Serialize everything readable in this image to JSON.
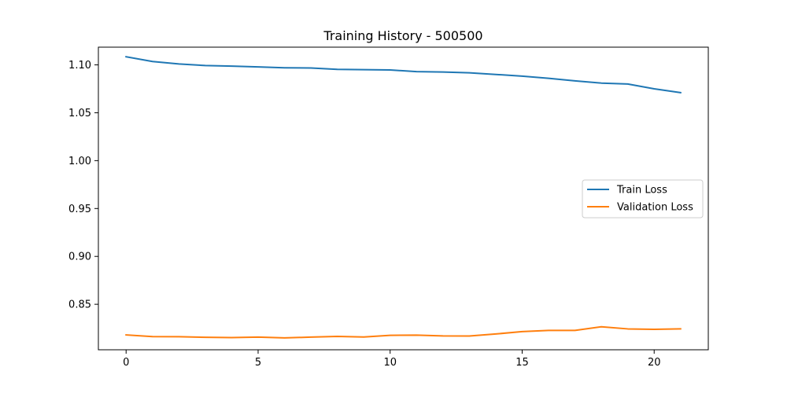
{
  "chart_data": {
    "type": "line",
    "title": "Training History - 500500",
    "xlabel": "",
    "ylabel": "",
    "xlim": [
      -1.05,
      22.05
    ],
    "ylim": [
      0.8025,
      1.1185
    ],
    "xticks": [
      0,
      5,
      10,
      15,
      20
    ],
    "yticks": [
      0.85,
      0.9,
      0.95,
      1.0,
      1.05,
      1.1
    ],
    "ytick_labels": [
      "0.85",
      "0.90",
      "0.95",
      "1.00",
      "1.05",
      "1.10"
    ],
    "grid": false,
    "legend_position": "center-right",
    "x": [
      0,
      1,
      2,
      3,
      4,
      5,
      6,
      7,
      8,
      9,
      10,
      11,
      12,
      13,
      14,
      15,
      16,
      17,
      18,
      19,
      20,
      21
    ],
    "series": [
      {
        "name": "Train Loss",
        "color": "#1f77b4",
        "values": [
          1.1085,
          1.1035,
          1.101,
          1.0993,
          1.0987,
          1.0979,
          1.097,
          1.0967,
          1.0953,
          1.095,
          1.0947,
          1.093,
          1.0925,
          1.0917,
          1.09,
          1.0882,
          1.086,
          1.0833,
          1.081,
          1.08,
          1.075,
          1.071
        ]
      },
      {
        "name": "Validation Loss",
        "color": "#ff7f0e",
        "values": [
          0.818,
          0.8163,
          0.8161,
          0.8155,
          0.8152,
          0.8157,
          0.8149,
          0.8157,
          0.8164,
          0.8158,
          0.8176,
          0.8178,
          0.817,
          0.8169,
          0.819,
          0.8215,
          0.8227,
          0.8227,
          0.8265,
          0.8243,
          0.8238,
          0.8243
        ]
      }
    ]
  }
}
